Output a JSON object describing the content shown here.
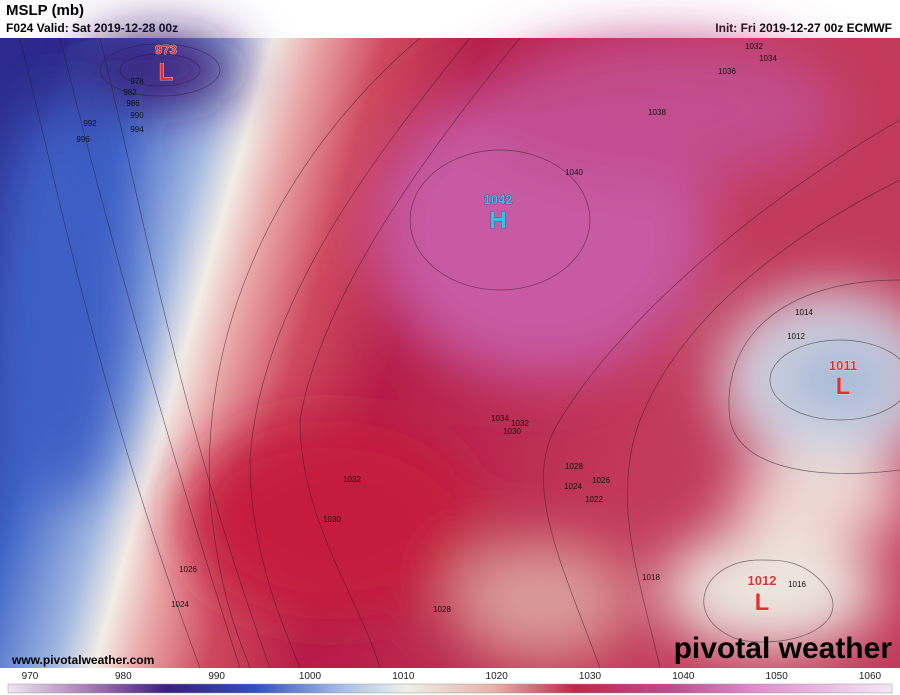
{
  "header": {
    "title": "MSLP (mb)",
    "valid": "F024 Valid: Sat 2019-12-28 00z",
    "init": "Init: Fri 2019-12-27 00z ECMWF"
  },
  "centers": [
    {
      "type": "L",
      "value": 973
    },
    {
      "type": "H",
      "value": 1042
    },
    {
      "type": "L",
      "value": 1011
    },
    {
      "type": "L",
      "value": 1012
    }
  ],
  "contour_labels": [
    978,
    982,
    986,
    990,
    992,
    994,
    996,
    1032,
    1034,
    1036,
    1038,
    1040,
    1014,
    1012,
    1034,
    1032,
    1030,
    1028,
    1026,
    1024,
    1022,
    1032,
    1030,
    1026,
    1024,
    1028,
    1018,
    1016
  ],
  "colorbar": {
    "ticks": [
      970,
      980,
      990,
      1000,
      1010,
      1020,
      1030,
      1040,
      1050,
      1060
    ]
  },
  "footer": {
    "url": "www.pivotalweather.com",
    "logo": "pivotal weather"
  }
}
